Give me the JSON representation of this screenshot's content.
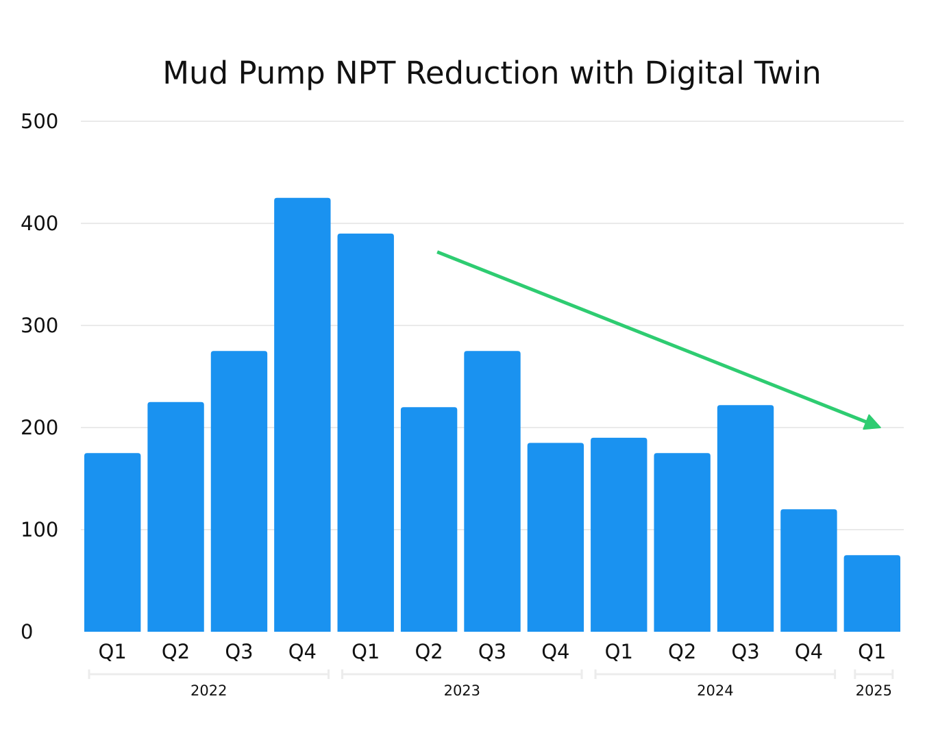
{
  "chart_data": {
    "type": "bar",
    "title": "Mud Pump NPT Reduction with Digital Twin",
    "xlabel": "",
    "ylabel": "",
    "ylim": [
      0,
      500
    ],
    "yticks": [
      0,
      100,
      200,
      300,
      400,
      500
    ],
    "grid": true,
    "categories": [
      "Q1",
      "Q2",
      "Q3",
      "Q4",
      "Q1",
      "Q2",
      "Q3",
      "Q4",
      "Q1",
      "Q2",
      "Q3",
      "Q4",
      "Q1"
    ],
    "groups": [
      {
        "label": "2022",
        "start": 0,
        "end": 3
      },
      {
        "label": "2023",
        "start": 4,
        "end": 7
      },
      {
        "label": "2024",
        "start": 8,
        "end": 11
      },
      {
        "label": "2025",
        "start": 12,
        "end": 12
      }
    ],
    "series": [
      {
        "name": "NPT",
        "values": [
          175,
          225,
          275,
          425,
          390,
          220,
          275,
          185,
          190,
          175,
          222,
          120,
          75
        ]
      }
    ],
    "trend_arrow": {
      "description": "downward trend",
      "from": {
        "category_index": 5,
        "value": 372
      },
      "to": {
        "category_index": 12,
        "value": 200
      }
    },
    "colors": {
      "bar": "#1a92f0",
      "trend": "#2ecc71",
      "grid": "#dddddd",
      "text": "#111111"
    }
  }
}
